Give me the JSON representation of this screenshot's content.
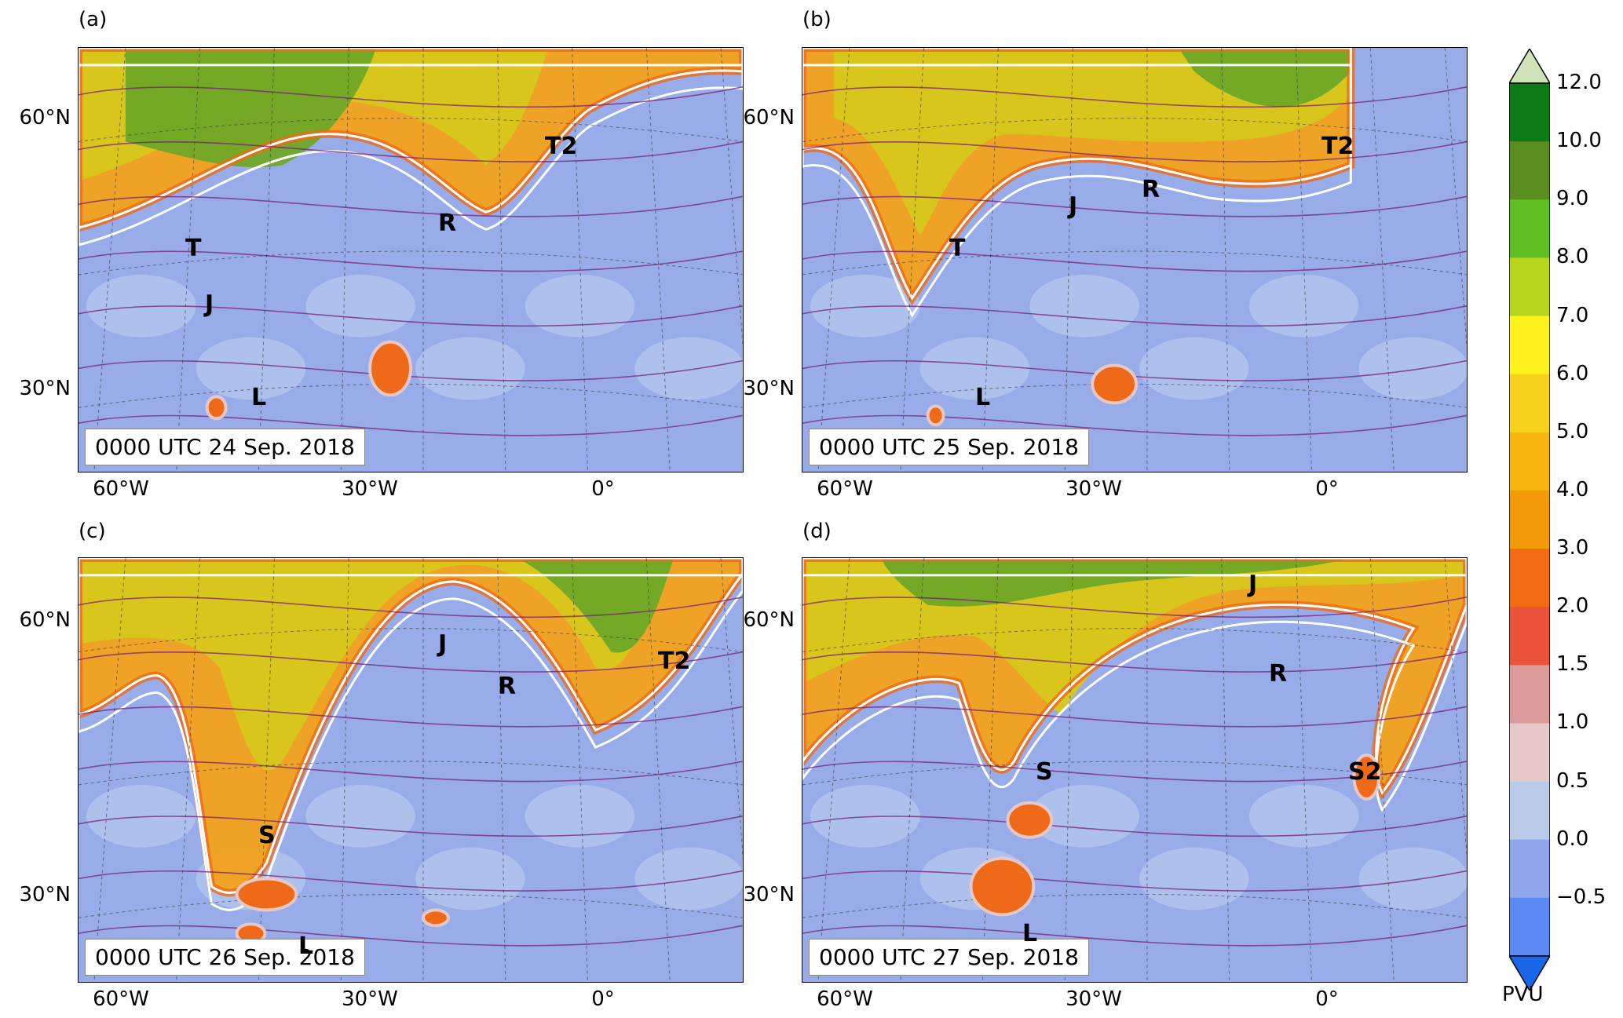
{
  "panels": [
    {
      "letter": "(a)",
      "date": "0000 UTC 24 Sep. 2018",
      "features": [
        {
          "label": "T",
          "xf": 0.16,
          "yf": 0.44
        },
        {
          "label": "J",
          "xf": 0.19,
          "yf": 0.57
        },
        {
          "label": "R",
          "xf": 0.54,
          "yf": 0.38
        },
        {
          "label": "T2",
          "xf": 0.7,
          "yf": 0.2
        },
        {
          "label": "L",
          "xf": 0.26,
          "yf": 0.79
        }
      ]
    },
    {
      "letter": "(b)",
      "date": "0000 UTC 25 Sep. 2018",
      "features": [
        {
          "label": "T",
          "xf": 0.22,
          "yf": 0.44
        },
        {
          "label": "J",
          "xf": 0.4,
          "yf": 0.34
        },
        {
          "label": "R",
          "xf": 0.51,
          "yf": 0.3
        },
        {
          "label": "T2",
          "xf": 0.78,
          "yf": 0.2
        },
        {
          "label": "L",
          "xf": 0.26,
          "yf": 0.79
        }
      ]
    },
    {
      "letter": "(c)",
      "date": "0000 UTC 26 Sep. 2018",
      "features": [
        {
          "label": "J",
          "xf": 0.54,
          "yf": 0.17
        },
        {
          "label": "R",
          "xf": 0.63,
          "yf": 0.27
        },
        {
          "label": "T2",
          "xf": 0.87,
          "yf": 0.21
        },
        {
          "label": "S",
          "xf": 0.27,
          "yf": 0.62
        },
        {
          "label": "L",
          "xf": 0.33,
          "yf": 0.88
        }
      ]
    },
    {
      "letter": "(d)",
      "date": "0000 UTC 27 Sep. 2018",
      "features": [
        {
          "label": "J",
          "xf": 0.67,
          "yf": 0.03
        },
        {
          "label": "R",
          "xf": 0.7,
          "yf": 0.24
        },
        {
          "label": "S",
          "xf": 0.35,
          "yf": 0.47
        },
        {
          "label": "S2",
          "xf": 0.82,
          "yf": 0.47
        },
        {
          "label": "L",
          "xf": 0.33,
          "yf": 0.85
        }
      ]
    }
  ],
  "lat_labels": [
    "60°N",
    "30°N"
  ],
  "lon_labels": [
    "60°W",
    "30°W",
    "0°"
  ],
  "colorbar": {
    "unit": "PVU",
    "ticks": [
      "12.0",
      "10.0",
      "9.0",
      "8.0",
      "7.0",
      "6.0",
      "5.0",
      "4.0",
      "3.0",
      "2.0",
      "1.5",
      "1.0",
      "0.5",
      "0.0",
      "−0.5"
    ],
    "colors": [
      "#0b7a14",
      "#5a8e1e",
      "#5fbf22",
      "#b7d51c",
      "#fff21c",
      "#f7d21a",
      "#f6b50f",
      "#f29a08",
      "#f26b10",
      "#e8533a",
      "#dd9a9a",
      "#e6c8c8",
      "#b9cbe8",
      "#8ea6ea",
      "#5b88f2"
    ],
    "over_color": "#cfe3b8",
    "under_color": "#1a66e8"
  }
}
